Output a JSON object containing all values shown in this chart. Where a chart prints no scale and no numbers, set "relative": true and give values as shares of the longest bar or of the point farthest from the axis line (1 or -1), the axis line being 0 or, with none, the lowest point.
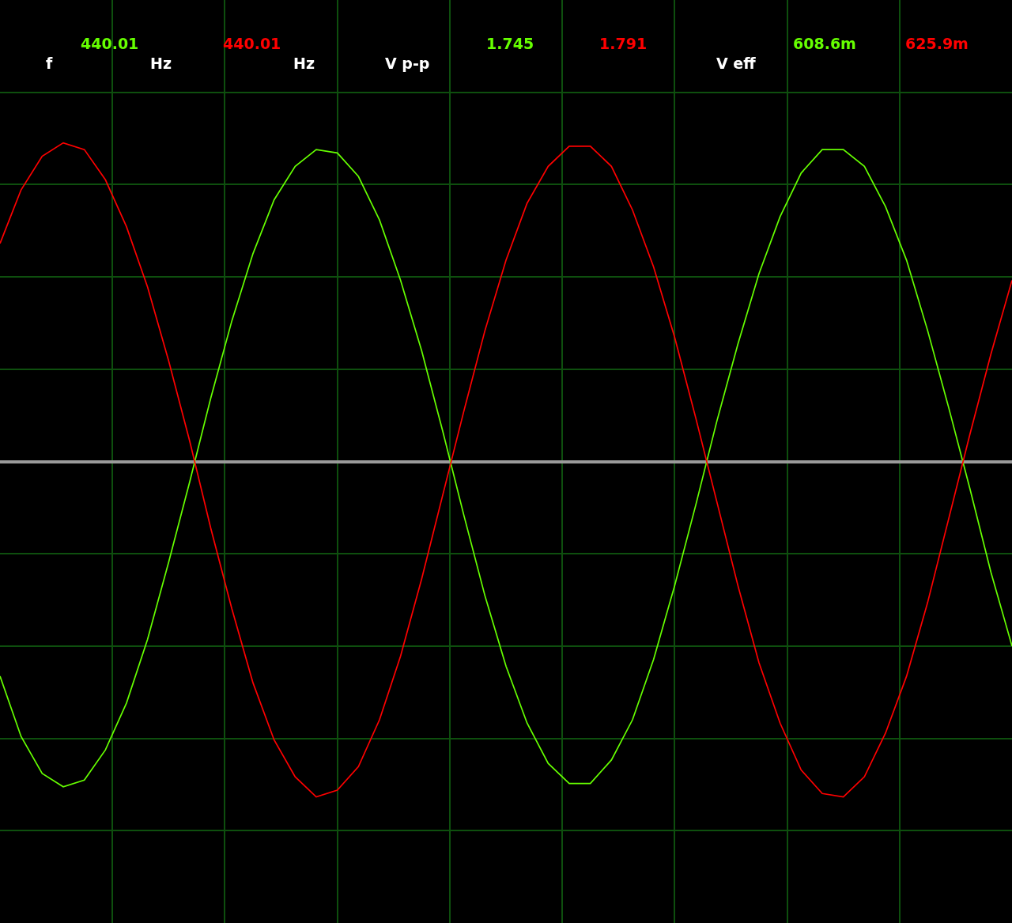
{
  "chart_data": {
    "type": "line",
    "relative": true,
    "grid": true,
    "annotations": [
      "f",
      "440.01",
      "Hz",
      "440.01",
      "Hz",
      "V p-p",
      "1.745",
      "1.791",
      "V eff",
      "608.6m",
      "625.9m"
    ],
    "categories": [
      null,
      null,
      null,
      null,
      null,
      null,
      null,
      null,
      null,
      null,
      null,
      null,
      null,
      null,
      null,
      null,
      null,
      null,
      null,
      null,
      null,
      null,
      null,
      null,
      null,
      null,
      null,
      null,
      null,
      null,
      null,
      null,
      null,
      null,
      null,
      null,
      null,
      null,
      null,
      null,
      null,
      null,
      null,
      null,
      null,
      null,
      null,
      null,
      null
    ],
    "series": [
      {
        "color": "#66ff00",
        "values": [
          -0.64,
          -0.82,
          -0.93,
          -0.97,
          -0.95,
          -0.86,
          -0.72,
          -0.53,
          -0.3,
          -0.06,
          0.19,
          0.42,
          0.62,
          0.78,
          0.88,
          0.93,
          0.92,
          0.85,
          0.72,
          0.54,
          0.33,
          0.09,
          -0.16,
          -0.4,
          -0.61,
          -0.78,
          -0.9,
          -0.96,
          -0.96,
          -0.89,
          -0.77,
          -0.59,
          -0.37,
          -0.13,
          0.12,
          0.35,
          0.56,
          0.73,
          0.86,
          0.93,
          0.93,
          0.88,
          0.76,
          0.6,
          0.39,
          0.16,
          -0.08,
          -0.33,
          -0.55
        ]
      },
      {
        "color": "#ff0000",
        "values": [
          0.65,
          0.81,
          0.91,
          0.95,
          0.93,
          0.84,
          0.7,
          0.52,
          0.3,
          0.06,
          -0.2,
          -0.44,
          -0.66,
          -0.83,
          -0.94,
          -1.0,
          -0.98,
          -0.91,
          -0.77,
          -0.58,
          -0.35,
          -0.1,
          0.15,
          0.39,
          0.6,
          0.77,
          0.88,
          0.94,
          0.94,
          0.88,
          0.75,
          0.58,
          0.37,
          0.13,
          -0.12,
          -0.37,
          -0.6,
          -0.78,
          -0.92,
          -0.99,
          -1.0,
          -0.94,
          -0.81,
          -0.64,
          -0.42,
          -0.17,
          0.08,
          0.32,
          0.54
        ]
      }
    ]
  }
}
